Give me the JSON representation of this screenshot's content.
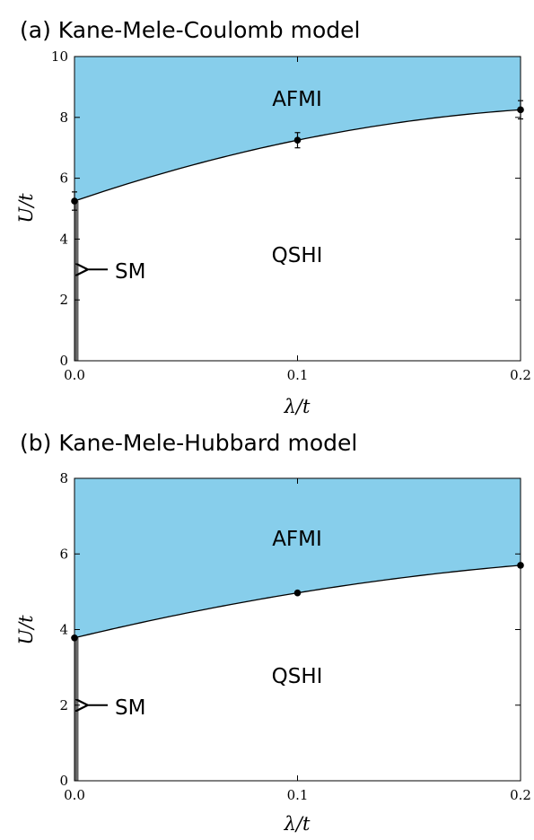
{
  "chart_data": [
    {
      "type": "line",
      "title": "(a) Kane-Mele-Coulomb model",
      "xlabel": "λ/t",
      "ylabel": "U/t",
      "xlim": [
        0,
        0.2
      ],
      "ylim": [
        0,
        10
      ],
      "xticks": [
        "0.0",
        "0.1",
        "0.2"
      ],
      "yticks": [
        "0",
        "2",
        "4",
        "6",
        "8",
        "10"
      ],
      "xtick_values": [
        0,
        0.1,
        0.2
      ],
      "ytick_values": [
        0,
        2,
        4,
        6,
        8,
        10
      ],
      "series": [
        {
          "x": [
            0.0,
            0.1,
            0.2
          ],
          "y": [
            5.25,
            7.25,
            8.25
          ],
          "yerr": [
            0.3,
            0.25,
            0.3
          ]
        }
      ],
      "fill_color": "#87ceeb",
      "sm_segment": {
        "x": 0.0,
        "y": [
          0,
          5.25
        ]
      },
      "regions": {
        "upper": "AFMI",
        "lower": "QSHI"
      },
      "annotation": {
        "text": "SM",
        "arrow_to": [
          0.0,
          3.0
        ]
      },
      "grid": false
    },
    {
      "type": "line",
      "title": "(b) Kane-Mele-Hubbard model",
      "xlabel": "λ/t",
      "ylabel": "U/t",
      "xlim": [
        0,
        0.2
      ],
      "ylim": [
        0,
        8
      ],
      "xticks": [
        "0.0",
        "0.1",
        "0.2"
      ],
      "yticks": [
        "0",
        "2",
        "4",
        "6",
        "8"
      ],
      "xtick_values": [
        0,
        0.1,
        0.2
      ],
      "ytick_values": [
        0,
        2,
        4,
        6,
        8
      ],
      "series": [
        {
          "x": [
            0.0,
            0.1,
            0.2
          ],
          "y": [
            3.78,
            4.97,
            5.7
          ],
          "yerr": [
            0,
            0,
            0
          ]
        }
      ],
      "fill_color": "#87ceeb",
      "sm_segment": {
        "x": 0.0,
        "y": [
          0,
          3.78
        ]
      },
      "regions": {
        "upper": "AFMI",
        "lower": "QSHI"
      },
      "annotation": {
        "text": "SM",
        "arrow_to": [
          0.0,
          2.0
        ]
      },
      "grid": false
    }
  ]
}
